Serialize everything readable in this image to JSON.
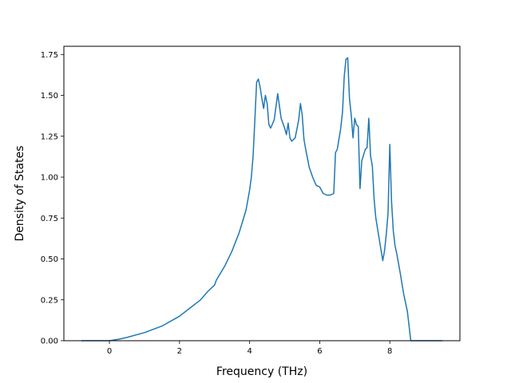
{
  "chart_data": {
    "type": "line",
    "title": "",
    "xlabel": "Frequency (THz)",
    "ylabel": "Density of States",
    "xlim": [
      -1.3,
      10.0
    ],
    "ylim": [
      0.0,
      1.8
    ],
    "xticks": [
      0,
      2,
      4,
      6,
      8
    ],
    "xtick_labels": [
      "0",
      "2",
      "4",
      "6",
      "8"
    ],
    "yticks": [
      0.0,
      0.25,
      0.5,
      0.75,
      1.0,
      1.25,
      1.5,
      1.75
    ],
    "ytick_labels": [
      "0.00",
      "0.25",
      "0.50",
      "0.75",
      "1.00",
      "1.25",
      "1.50",
      "1.75"
    ],
    "grid": false,
    "series": [
      {
        "color": "#1f77b4",
        "x": [
          -0.8,
          -0.5,
          0.0,
          0.3,
          0.5,
          1.0,
          1.5,
          2.0,
          2.3,
          2.6,
          2.8,
          3.0,
          3.05,
          3.3,
          3.5,
          3.7,
          3.8,
          3.9,
          4.0,
          4.05,
          4.1,
          4.15,
          4.2,
          4.25,
          4.3,
          4.35,
          4.4,
          4.45,
          4.5,
          4.55,
          4.6,
          4.7,
          4.8,
          4.9,
          5.0,
          5.05,
          5.1,
          5.15,
          5.2,
          5.3,
          5.4,
          5.45,
          5.5,
          5.55,
          5.6,
          5.7,
          5.8,
          5.9,
          6.0,
          6.1,
          6.2,
          6.3,
          6.4,
          6.45,
          6.5,
          6.6,
          6.65,
          6.7,
          6.75,
          6.8,
          6.85,
          6.9,
          6.95,
          7.0,
          7.05,
          7.1,
          7.15,
          7.2,
          7.3,
          7.35,
          7.4,
          7.45,
          7.5,
          7.55,
          7.6,
          7.7,
          7.8,
          7.85,
          7.9,
          7.95,
          8.0,
          8.05,
          8.1,
          8.15,
          8.2,
          8.3,
          8.4,
          8.5,
          8.6,
          8.7,
          9.0,
          9.5
        ],
        "y": [
          0.0,
          0.0,
          0.0,
          0.01,
          0.02,
          0.05,
          0.09,
          0.15,
          0.2,
          0.25,
          0.3,
          0.34,
          0.37,
          0.46,
          0.55,
          0.66,
          0.73,
          0.8,
          0.92,
          1.0,
          1.13,
          1.35,
          1.58,
          1.6,
          1.55,
          1.48,
          1.42,
          1.5,
          1.45,
          1.32,
          1.3,
          1.35,
          1.51,
          1.36,
          1.3,
          1.26,
          1.33,
          1.24,
          1.22,
          1.24,
          1.35,
          1.45,
          1.38,
          1.23,
          1.17,
          1.06,
          1.0,
          0.95,
          0.94,
          0.9,
          0.89,
          0.89,
          0.9,
          1.15,
          1.17,
          1.3,
          1.4,
          1.62,
          1.72,
          1.73,
          1.48,
          1.38,
          1.24,
          1.36,
          1.32,
          1.31,
          0.93,
          1.1,
          1.17,
          1.18,
          1.36,
          1.13,
          1.07,
          0.87,
          0.75,
          0.62,
          0.49,
          0.55,
          0.65,
          0.78,
          1.2,
          0.85,
          0.67,
          0.58,
          0.53,
          0.41,
          0.28,
          0.18,
          0.0,
          0.0,
          0.0,
          0.0
        ]
      }
    ]
  }
}
